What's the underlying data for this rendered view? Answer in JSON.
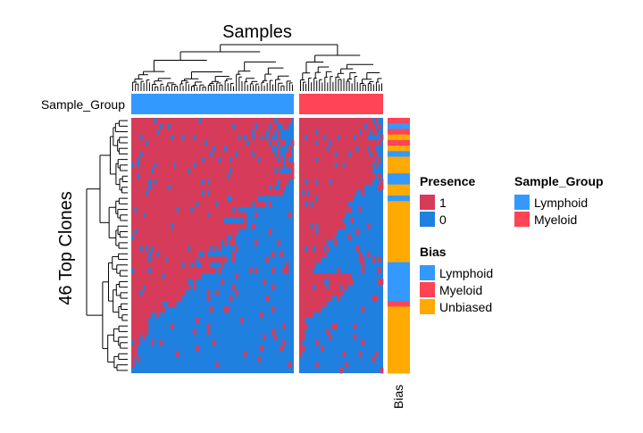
{
  "chart_data": {
    "type": "heatmap",
    "title": "Samples",
    "ylabel": "46  Top Clones",
    "column_annotation_label": "Sample_Group",
    "row_annotation_label": "Bias",
    "n_rows": 46,
    "column_groups": [
      {
        "group": "Lymphoid",
        "n_columns": 58
      },
      {
        "group": "Myeloid",
        "n_columns": 31
      }
    ],
    "colors": {
      "presence_1": "#d63c5a",
      "presence_0": "#2080e0",
      "group_lymphoid": "#3399ff",
      "group_myeloid": "#ff4455",
      "bias_lymphoid": "#3399ff",
      "bias_myeloid": "#ff4455",
      "bias_unbiased": "#ffaa00"
    },
    "presence_fraction_by_row": {
      "lymphoid": [
        0.95,
        0.95,
        0.88,
        0.85,
        0.93,
        0.9,
        0.97,
        0.95,
        0.97,
        0.95,
        0.95,
        0.95,
        0.88,
        0.9,
        0.78,
        0.82,
        0.65,
        0.72,
        0.55,
        0.72,
        0.65,
        0.58,
        0.62,
        0.55,
        0.45,
        0.58,
        0.48,
        0.5,
        0.42,
        0.36,
        0.38,
        0.3,
        0.28,
        0.24,
        0.2,
        0.15,
        0.1,
        0.1,
        0.08,
        0.05,
        0.05,
        0.03,
        0.02,
        0.01,
        0.0,
        0.0
      ],
      "myeloid": [
        0.9,
        0.92,
        0.85,
        0.8,
        0.92,
        0.88,
        0.92,
        0.92,
        0.9,
        0.85,
        0.85,
        0.85,
        0.75,
        0.75,
        0.65,
        0.6,
        0.6,
        0.55,
        0.5,
        0.5,
        0.45,
        0.4,
        0.3,
        0.3,
        0.3,
        0.22,
        0.18,
        0.15,
        0.6,
        0.6,
        0.55,
        0.45,
        0.35,
        0.3,
        0.25,
        0.15,
        0.1,
        0.08,
        0.05,
        0.05,
        0.03,
        0.02,
        0.02,
        0.0,
        0.0,
        0.0
      ]
    },
    "bias_by_row": [
      "Myeloid",
      "Lymphoid",
      "Myeloid",
      "Unbiased",
      "Myeloid",
      "Unbiased",
      "Lymphoid",
      "Unbiased",
      "Unbiased",
      "Unbiased",
      "Lymphoid",
      "Lymphoid",
      "Unbiased",
      "Unbiased",
      "Lymphoid",
      "Unbiased",
      "Unbiased",
      "Unbiased",
      "Unbiased",
      "Unbiased",
      "Unbiased",
      "Unbiased",
      "Unbiased",
      "Unbiased",
      "Unbiased",
      "Unbiased",
      "Lymphoid",
      "Lymphoid",
      "Lymphoid",
      "Lymphoid",
      "Lymphoid",
      "Lymphoid",
      "Lymphoid",
      "Myeloid",
      "Unbiased",
      "Unbiased",
      "Unbiased",
      "Unbiased",
      "Unbiased",
      "Unbiased",
      "Unbiased",
      "Unbiased",
      "Unbiased",
      "Unbiased",
      "Unbiased",
      "Unbiased"
    ],
    "legends": [
      {
        "title": "Presence",
        "items": [
          {
            "label": "1",
            "color": "#d63c5a"
          },
          {
            "label": "0",
            "color": "#2080e0"
          }
        ]
      },
      {
        "title": "Bias",
        "items": [
          {
            "label": "Lymphoid",
            "color": "#3399ff"
          },
          {
            "label": "Myeloid",
            "color": "#ff4455"
          },
          {
            "label": "Unbiased",
            "color": "#ffaa00"
          }
        ]
      },
      {
        "title": "Sample_Group",
        "items": [
          {
            "label": "Lymphoid",
            "color": "#3399ff"
          },
          {
            "label": "Myeloid",
            "color": "#ff4455"
          }
        ]
      }
    ]
  }
}
